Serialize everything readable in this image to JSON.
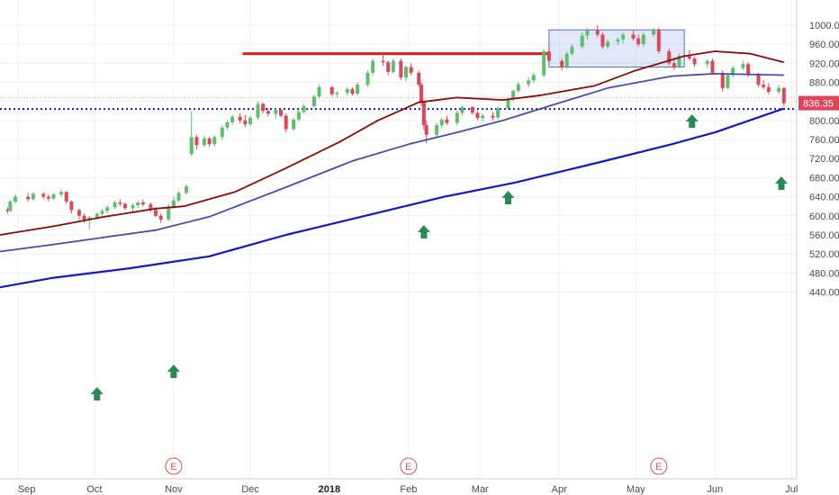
{
  "chart_data": {
    "type": "candlestick",
    "instrument": "daily price chart with moving averages",
    "x_ticks": [
      "Sep",
      "Oct",
      "Nov",
      "Dec",
      "2018",
      "Feb",
      "Mar",
      "Apr",
      "May",
      "Jun",
      "Jul"
    ],
    "y_ticks": [
      "440.00",
      "480.00",
      "520.00",
      "560.00",
      "600.00",
      "640.00",
      "680.00",
      "720.00",
      "760.00",
      "800.00",
      "840.00",
      "880.00",
      "920.00",
      "960.00",
      "1000.00"
    ],
    "ylim": [
      425,
      1015
    ],
    "last_price_label": "836.35",
    "last_price": 836.35,
    "support_level": 824,
    "resistance_line": {
      "from": "2017-11-28",
      "to": "2018-03-28",
      "value": 940
    },
    "consolidation_box": {
      "from": "2018-03-28",
      "to": "2018-05-20",
      "low": 912,
      "high": 990
    },
    "earnings_marker_label": "E",
    "earnings_dates": [
      "2017-11-01",
      "2018-02-01",
      "2018-05-10"
    ],
    "buy_arrow_dates": [
      "2017-10-02",
      "2017-11-01",
      "2018-02-07",
      "2018-03-12",
      "2018-05-23",
      "2018-06-27"
    ],
    "series": [
      {
        "key": "ma50",
        "color": "#8b0a0a",
        "points": [
          [
            "2017-08-25",
            560
          ],
          [
            "2017-09-15",
            578
          ],
          [
            "2017-10-05",
            598
          ],
          [
            "2017-10-25",
            615
          ],
          [
            "2017-11-05",
            620
          ],
          [
            "2017-11-25",
            650
          ],
          [
            "2017-12-15",
            700
          ],
          [
            "2018-01-05",
            755
          ],
          [
            "2018-01-20",
            800
          ],
          [
            "2018-02-05",
            838
          ],
          [
            "2018-02-20",
            848
          ],
          [
            "2018-03-10",
            843
          ],
          [
            "2018-03-25",
            853
          ],
          [
            "2018-04-15",
            873
          ],
          [
            "2018-05-01",
            905
          ],
          [
            "2018-05-20",
            935
          ],
          [
            "2018-06-01",
            945
          ],
          [
            "2018-06-15",
            940
          ],
          [
            "2018-06-28",
            922
          ]
        ]
      },
      {
        "key": "ma100",
        "color": "#4b4ba8",
        "points": [
          [
            "2017-08-25",
            525
          ],
          [
            "2017-09-15",
            540
          ],
          [
            "2017-10-05",
            555
          ],
          [
            "2017-10-25",
            570
          ],
          [
            "2017-11-15",
            598
          ],
          [
            "2017-12-15",
            660
          ],
          [
            "2018-01-10",
            715
          ],
          [
            "2018-02-01",
            750
          ],
          [
            "2018-02-20",
            775
          ],
          [
            "2018-03-10",
            800
          ],
          [
            "2018-03-28",
            830
          ],
          [
            "2018-04-20",
            868
          ],
          [
            "2018-05-15",
            893
          ],
          [
            "2018-06-01",
            898
          ],
          [
            "2018-06-28",
            895
          ]
        ]
      },
      {
        "key": "ma200",
        "color": "#1515d0",
        "points": [
          [
            "2017-08-25",
            450
          ],
          [
            "2017-09-15",
            470
          ],
          [
            "2017-10-15",
            490
          ],
          [
            "2017-11-15",
            515
          ],
          [
            "2017-12-15",
            560
          ],
          [
            "2018-01-15",
            600
          ],
          [
            "2018-02-15",
            640
          ],
          [
            "2018-03-15",
            670
          ],
          [
            "2018-04-15",
            710
          ],
          [
            "2018-05-15",
            750
          ],
          [
            "2018-06-01",
            775
          ],
          [
            "2018-06-28",
            825
          ]
        ]
      }
    ],
    "candles": [
      [
        "2017-08-28",
        613,
        618,
        605,
        610
      ],
      [
        "2017-08-29",
        610,
        633,
        608,
        630
      ],
      [
        "2017-08-31",
        630,
        645,
        625,
        640
      ],
      [
        "2017-09-05",
        640,
        648,
        630,
        635
      ],
      [
        "2017-09-07",
        635,
        650,
        632,
        646
      ],
      [
        "2017-09-11",
        646,
        650,
        635,
        640
      ],
      [
        "2017-09-13",
        640,
        645,
        630,
        636
      ],
      [
        "2017-09-15",
        636,
        648,
        633,
        645
      ],
      [
        "2017-09-18",
        645,
        655,
        640,
        650
      ],
      [
        "2017-09-20",
        650,
        652,
        625,
        630
      ],
      [
        "2017-09-22",
        630,
        632,
        605,
        612
      ],
      [
        "2017-09-25",
        612,
        615,
        592,
        600
      ],
      [
        "2017-09-27",
        600,
        605,
        585,
        590
      ],
      [
        "2017-09-29",
        590,
        600,
        572,
        597
      ],
      [
        "2017-10-02",
        597,
        607,
        592,
        604
      ],
      [
        "2017-10-04",
        604,
        614,
        598,
        610
      ],
      [
        "2017-10-06",
        610,
        622,
        605,
        618
      ],
      [
        "2017-10-09",
        618,
        632,
        614,
        628
      ],
      [
        "2017-10-11",
        628,
        635,
        620,
        625
      ],
      [
        "2017-10-13",
        625,
        628,
        612,
        616
      ],
      [
        "2017-10-16",
        616,
        626,
        608,
        622
      ],
      [
        "2017-10-18",
        622,
        632,
        616,
        628
      ],
      [
        "2017-10-20",
        628,
        635,
        620,
        624
      ],
      [
        "2017-10-23",
        624,
        628,
        608,
        612
      ],
      [
        "2017-10-25",
        612,
        618,
        596,
        600
      ],
      [
        "2017-10-27",
        600,
        605,
        585,
        592
      ],
      [
        "2017-10-30",
        592,
        625,
        590,
        620
      ],
      [
        "2017-11-01",
        620,
        640,
        615,
        632
      ],
      [
        "2017-11-03",
        632,
        652,
        628,
        648
      ],
      [
        "2017-11-06",
        648,
        666,
        645,
        662
      ],
      [
        "2017-11-08",
        730,
        820,
        725,
        765
      ],
      [
        "2017-11-10",
        765,
        770,
        740,
        748
      ],
      [
        "2017-11-13",
        748,
        768,
        744,
        762
      ],
      [
        "2017-11-15",
        762,
        766,
        744,
        750
      ],
      [
        "2017-11-17",
        750,
        770,
        746,
        765
      ],
      [
        "2017-11-20",
        765,
        790,
        760,
        785
      ],
      [
        "2017-11-22",
        785,
        800,
        780,
        796
      ],
      [
        "2017-11-24",
        796,
        812,
        790,
        808
      ],
      [
        "2017-11-27",
        808,
        815,
        794,
        800
      ],
      [
        "2017-11-29",
        800,
        812,
        786,
        792
      ],
      [
        "2017-12-01",
        792,
        810,
        788,
        806
      ],
      [
        "2017-12-04",
        806,
        840,
        802,
        835
      ],
      [
        "2017-12-06",
        835,
        838,
        815,
        820
      ],
      [
        "2017-12-08",
        820,
        826,
        808,
        814
      ],
      [
        "2017-12-11",
        814,
        825,
        805,
        822
      ],
      [
        "2017-12-13",
        822,
        826,
        806,
        810
      ],
      [
        "2017-12-15",
        810,
        815,
        775,
        782
      ],
      [
        "2017-12-18",
        782,
        805,
        778,
        802
      ],
      [
        "2017-12-20",
        802,
        822,
        798,
        818
      ],
      [
        "2017-12-22",
        818,
        835,
        815,
        830
      ],
      [
        "2017-12-26",
        830,
        855,
        825,
        850
      ],
      [
        "2017-12-28",
        850,
        875,
        846,
        870
      ],
      [
        "2018-01-02",
        870,
        872,
        850,
        855
      ],
      [
        "2018-01-04",
        855,
        862,
        848,
        858
      ],
      [
        "2018-01-08",
        858,
        870,
        852,
        866
      ],
      [
        "2018-01-10",
        866,
        870,
        852,
        856
      ],
      [
        "2018-01-12",
        856,
        880,
        852,
        875
      ],
      [
        "2018-01-16",
        875,
        905,
        870,
        900
      ],
      [
        "2018-01-18",
        900,
        930,
        895,
        925
      ],
      [
        "2018-01-22",
        925,
        940,
        915,
        922
      ],
      [
        "2018-01-24",
        922,
        926,
        895,
        902
      ],
      [
        "2018-01-26",
        902,
        930,
        898,
        925
      ],
      [
        "2018-01-29",
        925,
        930,
        885,
        890
      ],
      [
        "2018-01-31",
        890,
        915,
        882,
        912
      ],
      [
        "2018-02-02",
        912,
        920,
        895,
        900
      ],
      [
        "2018-02-05",
        900,
        905,
        870,
        875
      ],
      [
        "2018-02-06",
        875,
        880,
        830,
        838
      ],
      [
        "2018-02-07",
        838,
        842,
        780,
        790
      ],
      [
        "2018-02-08",
        790,
        800,
        752,
        770
      ],
      [
        "2018-02-12",
        770,
        795,
        765,
        790
      ],
      [
        "2018-02-14",
        790,
        806,
        785,
        802
      ],
      [
        "2018-02-16",
        802,
        810,
        790,
        795
      ],
      [
        "2018-02-20",
        795,
        820,
        790,
        816
      ],
      [
        "2018-02-22",
        816,
        832,
        810,
        828
      ],
      [
        "2018-02-26",
        828,
        830,
        812,
        816
      ],
      [
        "2018-02-28",
        816,
        820,
        800,
        805
      ],
      [
        "2018-03-02",
        805,
        815,
        798,
        810
      ],
      [
        "2018-03-06",
        810,
        818,
        800,
        806
      ],
      [
        "2018-03-08",
        806,
        830,
        802,
        826
      ],
      [
        "2018-03-12",
        826,
        848,
        822,
        845
      ],
      [
        "2018-03-14",
        845,
        865,
        840,
        862
      ],
      [
        "2018-03-16",
        862,
        880,
        858,
        876
      ],
      [
        "2018-03-20",
        876,
        890,
        870,
        884
      ],
      [
        "2018-03-22",
        884,
        900,
        878,
        895
      ],
      [
        "2018-03-26",
        895,
        950,
        890,
        945
      ],
      [
        "2018-03-28",
        945,
        955,
        920,
        925
      ],
      [
        "2018-04-02",
        925,
        930,
        905,
        912
      ],
      [
        "2018-04-04",
        912,
        945,
        908,
        940
      ],
      [
        "2018-04-06",
        940,
        960,
        935,
        955
      ],
      [
        "2018-04-10",
        955,
        985,
        950,
        978
      ],
      [
        "2018-04-12",
        978,
        995,
        970,
        990
      ],
      [
        "2018-04-16",
        990,
        1000,
        975,
        980
      ],
      [
        "2018-04-18",
        980,
        985,
        950,
        955
      ],
      [
        "2018-04-20",
        955,
        970,
        950,
        965
      ],
      [
        "2018-04-24",
        965,
        975,
        958,
        970
      ],
      [
        "2018-04-26",
        970,
        985,
        962,
        980
      ],
      [
        "2018-04-30",
        980,
        990,
        968,
        972
      ],
      [
        "2018-05-02",
        972,
        980,
        955,
        960
      ],
      [
        "2018-05-04",
        960,
        985,
        955,
        980
      ],
      [
        "2018-05-08",
        980,
        995,
        975,
        990
      ],
      [
        "2018-05-10",
        990,
        995,
        940,
        945
      ],
      [
        "2018-05-14",
        945,
        950,
        915,
        920
      ],
      [
        "2018-05-16",
        920,
        930,
        905,
        912
      ],
      [
        "2018-05-18",
        912,
        940,
        910,
        935
      ],
      [
        "2018-05-22",
        935,
        948,
        926,
        930
      ],
      [
        "2018-05-24",
        930,
        934,
        912,
        918
      ],
      [
        "2018-05-29",
        918,
        928,
        910,
        925
      ],
      [
        "2018-05-31",
        925,
        930,
        895,
        900
      ],
      [
        "2018-06-04",
        900,
        905,
        860,
        868
      ],
      [
        "2018-06-06",
        868,
        900,
        865,
        895
      ],
      [
        "2018-06-08",
        895,
        915,
        890,
        910
      ],
      [
        "2018-06-12",
        910,
        925,
        905,
        918
      ],
      [
        "2018-06-14",
        918,
        922,
        890,
        895
      ],
      [
        "2018-06-18",
        895,
        900,
        870,
        875
      ],
      [
        "2018-06-20",
        875,
        885,
        865,
        870
      ],
      [
        "2018-06-22",
        870,
        878,
        855,
        860
      ],
      [
        "2018-06-26",
        860,
        875,
        855,
        868
      ],
      [
        "2018-06-28",
        868,
        870,
        830,
        836
      ]
    ]
  }
}
